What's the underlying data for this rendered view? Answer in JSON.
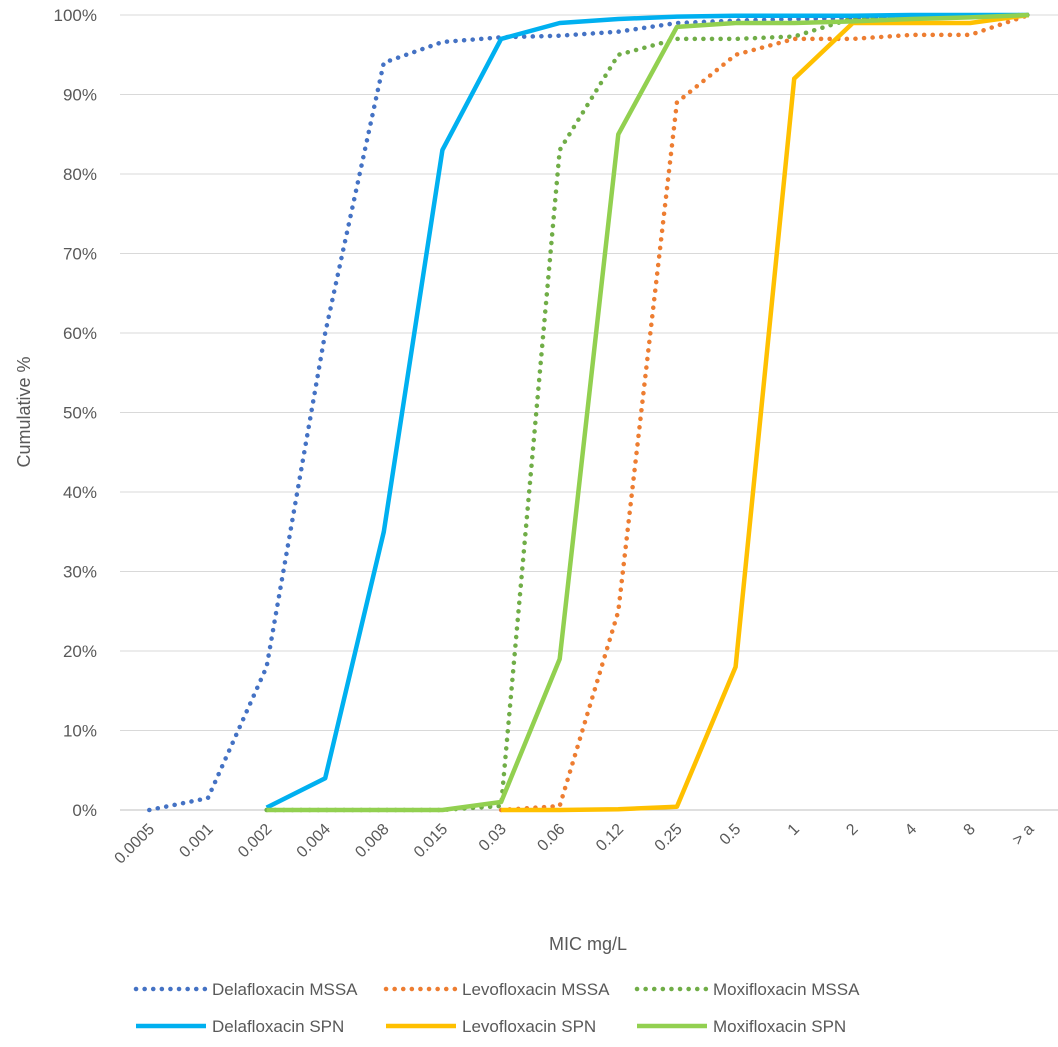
{
  "chart_data": {
    "type": "line",
    "title": "",
    "xlabel": "MIC mg/L",
    "ylabel": "Cumulative %",
    "categories": [
      "0.0005",
      "0.001",
      "0.002",
      "0.004",
      "0.008",
      "0.015",
      "0.03",
      "0.06",
      "0.12",
      "0.25",
      "0.5",
      "1",
      "2",
      "4",
      "8",
      "> a"
    ],
    "ylim": [
      0,
      100
    ],
    "y_ticks": [
      "0%",
      "10%",
      "20%",
      "30%",
      "40%",
      "50%",
      "60%",
      "70%",
      "80%",
      "90%",
      "100%"
    ],
    "grid": true,
    "legend_position": "bottom",
    "series": [
      {
        "name": "Delafloxacin MSSA",
        "color": "#4472C4",
        "style": "dotted",
        "values": [
          0,
          1.5,
          18,
          60,
          94,
          96.6,
          97.2,
          97.4,
          97.9,
          99,
          99.3,
          99.5,
          99.6,
          99.8,
          99.9,
          100
        ]
      },
      {
        "name": "Levofloxacin MSSA",
        "color": "#ED7D31",
        "style": "dotted",
        "values": [
          null,
          null,
          null,
          null,
          null,
          null,
          0,
          0.5,
          25,
          89,
          95,
          97,
          97,
          97.5,
          97.5,
          100
        ]
      },
      {
        "name": "Moxifloxacin MSSA",
        "color": "#70AD47",
        "style": "dotted",
        "values": [
          null,
          null,
          0,
          0,
          0,
          0,
          0.5,
          83,
          95,
          97,
          97,
          97.3,
          99.6,
          99.8,
          99.9,
          100
        ]
      },
      {
        "name": "Delafloxacin SPN",
        "color": "#00B0F0",
        "style": "solid",
        "values": [
          null,
          null,
          0.3,
          4,
          35,
          83,
          97,
          99,
          99.5,
          99.8,
          99.9,
          99.9,
          99.9,
          100,
          100,
          100
        ]
      },
      {
        "name": "Levofloxacin SPN",
        "color": "#FFC000",
        "style": "solid",
        "values": [
          null,
          null,
          null,
          null,
          null,
          null,
          0,
          0,
          0.1,
          0.4,
          18,
          92,
          99,
          99,
          99,
          100
        ]
      },
      {
        "name": "Moxifloxacin SPN",
        "color": "#92D050",
        "style": "solid",
        "values": [
          null,
          null,
          0,
          0,
          0,
          0,
          1,
          19,
          85,
          98.5,
          99,
          99,
          99.2,
          99.5,
          99.7,
          100
        ]
      }
    ]
  }
}
